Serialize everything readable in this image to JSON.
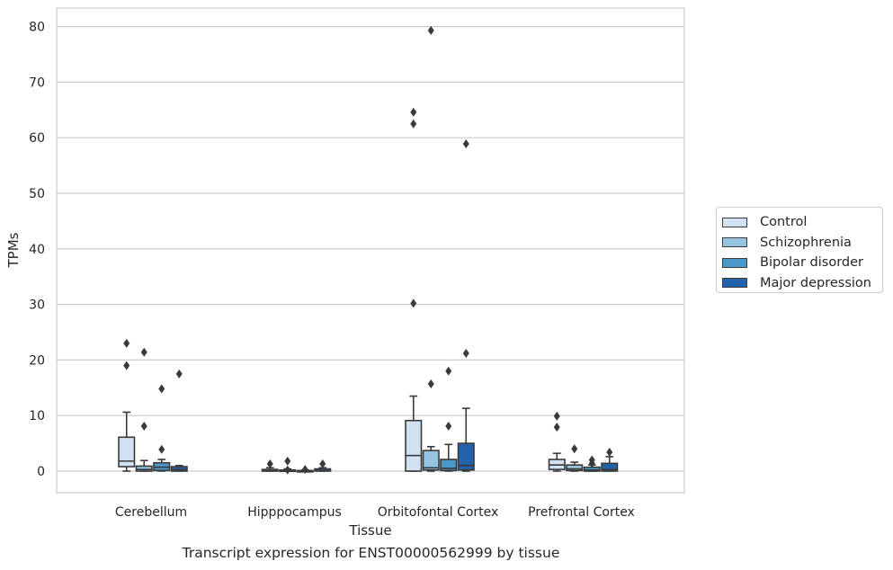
{
  "chart_data": {
    "type": "box",
    "caption": "Transcript expression for ENST00000562999 by tissue",
    "xlabel": "Tissue",
    "ylabel": "TPMs",
    "ylim": [
      -3.9,
      83
    ],
    "yticks": [
      0,
      10,
      20,
      30,
      40,
      50,
      60,
      70,
      80
    ],
    "grid": "horizontal",
    "legend_position": "right",
    "categories": [
      "Cerebellum",
      "Hipppocampus",
      "Orbitofontal Cortex",
      "Prefrontal Cortex"
    ],
    "series": [
      {
        "name": "Control",
        "color": "#d0e1f2",
        "boxes": [
          {
            "whislo": 0,
            "q1": 0.8,
            "med": 1.8,
            "q3": 6.1,
            "whishi": 10.6,
            "fliers": [
              19,
              23
            ]
          },
          {
            "whislo": 0,
            "q1": 0,
            "med": 0.1,
            "q3": 0.3,
            "whishi": 0.6,
            "fliers": [
              1.3
            ]
          },
          {
            "whislo": 0,
            "q1": 0,
            "med": 2.8,
            "q3": 9.1,
            "whishi": 13.5,
            "fliers": [
              30.2,
              62.5,
              64.6
            ]
          },
          {
            "whislo": 0,
            "q1": 0.3,
            "med": 1.1,
            "q3": 2.1,
            "whishi": 3.2,
            "fliers": [
              7.9,
              9.9
            ]
          }
        ]
      },
      {
        "name": "Schizophrenia",
        "color": "#94c4df",
        "boxes": [
          {
            "whislo": 0,
            "q1": 0,
            "med": 0.3,
            "q3": 0.9,
            "whishi": 1.9,
            "fliers": [
              8.1,
              21.4
            ]
          },
          {
            "whislo": 0,
            "q1": 0,
            "med": 0.1,
            "q3": 0.2,
            "whishi": 0.4,
            "fliers": [
              0.2,
              1.8
            ]
          },
          {
            "whislo": 0,
            "q1": 0.2,
            "med": 0.6,
            "q3": 3.7,
            "whishi": 4.4,
            "fliers": [
              15.7,
              79.3
            ]
          },
          {
            "whislo": 0,
            "q1": 0.1,
            "med": 0.4,
            "q3": 1.1,
            "whishi": 1.6,
            "fliers": [
              4.0
            ]
          }
        ]
      },
      {
        "name": "Bipolar disorder",
        "color": "#4a98c9",
        "boxes": [
          {
            "whislo": 0,
            "q1": 0.1,
            "med": 0.7,
            "q3": 1.5,
            "whishi": 2.1,
            "fliers": [
              3.9,
              14.8
            ]
          },
          {
            "whislo": 0,
            "q1": 0,
            "med": 0.05,
            "q3": 0.1,
            "whishi": 0.2,
            "fliers": [
              0.3
            ]
          },
          {
            "whislo": 0,
            "q1": 0.1,
            "med": 0.5,
            "q3": 2.1,
            "whishi": 4.8,
            "fliers": [
              8.1,
              18.0
            ]
          },
          {
            "whislo": 0,
            "q1": 0,
            "med": 0.2,
            "q3": 0.7,
            "whishi": 1.1,
            "fliers": [
              1.4,
              2.0
            ]
          }
        ]
      },
      {
        "name": "Major depression",
        "color": "#2164ab",
        "boxes": [
          {
            "whislo": 0,
            "q1": 0,
            "med": 0.3,
            "q3": 0.8,
            "whishi": 1.0,
            "fliers": [
              17.5
            ]
          },
          {
            "whislo": 0,
            "q1": 0,
            "med": 0.1,
            "q3": 0.4,
            "whishi": 0.6,
            "fliers": [
              1.3
            ]
          },
          {
            "whislo": 0,
            "q1": 0.2,
            "med": 1.0,
            "q3": 5.0,
            "whishi": 11.3,
            "fliers": [
              21.2,
              58.9
            ]
          },
          {
            "whislo": 0,
            "q1": 0,
            "med": 0.3,
            "q3": 1.4,
            "whishi": 2.6,
            "fliers": [
              3.4
            ]
          }
        ]
      }
    ]
  }
}
